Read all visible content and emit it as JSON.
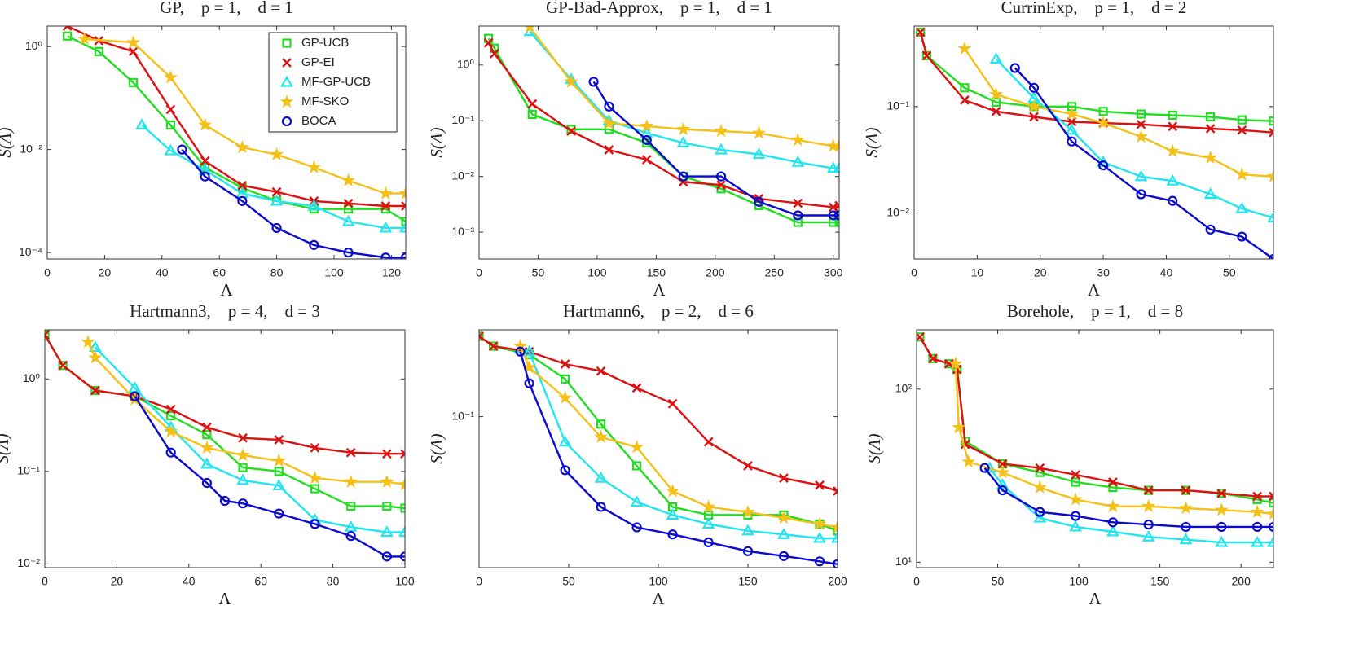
{
  "chart_data": [
    {
      "type": "line",
      "title": "GP,    p = 1,    d = 1",
      "xlabel": "Λ",
      "ylabel": "S(Λ)",
      "log_y": true,
      "legend": "upper right",
      "xlim": [
        0,
        125
      ],
      "ylim": [
        7.5e-05,
        2.5
      ],
      "xticks": [
        0,
        20,
        40,
        60,
        80,
        100,
        120
      ],
      "yticks": [
        {
          "value": 0.0001,
          "label": "10⁻⁴"
        },
        {
          "value": 0.01,
          "label": "10⁻²"
        },
        {
          "value": 1,
          "label": "10⁰"
        }
      ],
      "series": [
        {
          "name": "GP-UCB",
          "color": "#22dd22",
          "marker": "square",
          "x": [
            7,
            18,
            30,
            43,
            55,
            68,
            80,
            93,
            105,
            118,
            125
          ],
          "values": [
            1.6,
            0.8,
            0.2,
            0.03,
            0.0045,
            0.0018,
            0.001,
            0.0007,
            0.0007,
            0.0007,
            0.0004
          ]
        },
        {
          "name": "GP-EI",
          "color": "#dd1111",
          "marker": "x",
          "x": [
            7,
            18,
            30,
            43,
            55,
            68,
            80,
            93,
            105,
            118,
            125
          ],
          "values": [
            2.5,
            1.3,
            0.8,
            0.06,
            0.006,
            0.002,
            0.0015,
            0.001,
            0.0009,
            0.0008,
            0.0008
          ]
        },
        {
          "name": "MF-GP-UCB",
          "color": "#22e5ee",
          "marker": "triangle",
          "x": [
            33,
            43,
            55,
            68,
            80,
            93,
            105,
            118,
            125
          ],
          "values": [
            0.03,
            0.0095,
            0.004,
            0.0014,
            0.001,
            0.0008,
            0.0004,
            0.0003,
            0.0003
          ]
        },
        {
          "name": "MF-SKO",
          "color": "#f5c018",
          "marker": "star",
          "x": [
            13,
            30,
            43,
            55,
            68,
            80,
            93,
            105,
            118,
            125
          ],
          "values": [
            1.4,
            1.2,
            0.25,
            0.03,
            0.011,
            0.008,
            0.0045,
            0.0025,
            0.0014,
            0.0014
          ]
        },
        {
          "name": "BOCA",
          "color": "#0a0ad0",
          "marker": "circle",
          "x": [
            47,
            55,
            68,
            80,
            93,
            105,
            118,
            125
          ],
          "values": [
            0.01,
            0.003,
            0.001,
            0.0003,
            0.00014,
            0.0001,
            8e-05,
            8e-05
          ]
        }
      ]
    },
    {
      "type": "line",
      "title": "GP-Bad-Approx,    p = 1,    d = 1",
      "xlabel": "Λ",
      "ylabel": "S(Λ)",
      "log_y": true,
      "xlim": [
        0,
        305
      ],
      "ylim": [
        0.00033,
        5
      ],
      "xticks": [
        0,
        50,
        100,
        150,
        200,
        250,
        300
      ],
      "yticks": [
        {
          "value": 0.001,
          "label": "10⁻³"
        },
        {
          "value": 0.01,
          "label": "10⁻²"
        },
        {
          "value": 0.1,
          "label": "10⁻¹"
        },
        {
          "value": 1,
          "label": "10⁰"
        }
      ],
      "series": [
        {
          "color": "#22dd22",
          "marker": "square",
          "x": [
            8,
            13,
            45,
            78,
            110,
            142,
            173,
            205,
            237,
            270,
            300,
            305
          ],
          "values": [
            3.0,
            2.0,
            0.13,
            0.07,
            0.07,
            0.04,
            0.01,
            0.006,
            0.003,
            0.0015,
            0.0015,
            0.0015
          ]
        },
        {
          "color": "#dd1111",
          "marker": "x",
          "x": [
            8,
            13,
            45,
            78,
            110,
            142,
            173,
            205,
            237,
            270,
            300,
            305
          ],
          "values": [
            2.5,
            1.6,
            0.2,
            0.065,
            0.03,
            0.02,
            0.008,
            0.007,
            0.004,
            0.0033,
            0.0028,
            0.003
          ]
        },
        {
          "color": "#22e5ee",
          "marker": "triangle",
          "x": [
            43,
            78,
            110,
            142,
            173,
            205,
            237,
            270,
            300,
            305
          ],
          "values": [
            4.0,
            0.55,
            0.1,
            0.06,
            0.04,
            0.03,
            0.025,
            0.018,
            0.014,
            0.014
          ]
        },
        {
          "color": "#f5c018",
          "marker": "star",
          "x": [
            43,
            78,
            110,
            142,
            173,
            205,
            237,
            270,
            300,
            305
          ],
          "values": [
            4.8,
            0.5,
            0.09,
            0.08,
            0.07,
            0.065,
            0.06,
            0.045,
            0.035,
            0.035
          ]
        },
        {
          "color": "#0a0ad0",
          "marker": "circle",
          "x": [
            97,
            110,
            142,
            173,
            205,
            237,
            270,
            300,
            305
          ],
          "values": [
            0.5,
            0.18,
            0.045,
            0.01,
            0.01,
            0.0035,
            0.002,
            0.002,
            0.002
          ]
        }
      ]
    },
    {
      "type": "line",
      "title": "CurrinExp,    p = 1,    d = 2",
      "xlabel": "Λ",
      "ylabel": "S(Λ)",
      "log_y": true,
      "xlim": [
        0,
        57
      ],
      "ylim": [
        0.0037,
        0.57
      ],
      "xticks": [
        0,
        10,
        20,
        30,
        40,
        50
      ],
      "yticks": [
        {
          "value": 0.01,
          "label": "10⁻²"
        },
        {
          "value": 0.1,
          "label": "10⁻¹"
        }
      ],
      "series": [
        {
          "color": "#22dd22",
          "marker": "square",
          "x": [
            1,
            2,
            8,
            13,
            19,
            25,
            30,
            36,
            41,
            47,
            52,
            57
          ],
          "values": [
            0.5,
            0.3,
            0.15,
            0.11,
            0.1,
            0.1,
            0.09,
            0.085,
            0.083,
            0.08,
            0.075,
            0.073
          ]
        },
        {
          "color": "#dd1111",
          "marker": "x",
          "x": [
            1,
            2,
            8,
            13,
            19,
            25,
            30,
            36,
            41,
            47,
            52,
            57
          ],
          "values": [
            0.5,
            0.3,
            0.115,
            0.09,
            0.08,
            0.072,
            0.07,
            0.068,
            0.065,
            0.062,
            0.06,
            0.057
          ]
        },
        {
          "color": "#22e5ee",
          "marker": "triangle",
          "x": [
            13,
            19,
            25,
            30,
            36,
            41,
            47,
            52,
            57
          ],
          "values": [
            0.28,
            0.12,
            0.06,
            0.03,
            0.022,
            0.02,
            0.015,
            0.011,
            0.009
          ]
        },
        {
          "color": "#f5c018",
          "marker": "star",
          "x": [
            8,
            13,
            19,
            25,
            30,
            36,
            41,
            47,
            52,
            57
          ],
          "values": [
            0.35,
            0.13,
            0.1,
            0.085,
            0.07,
            0.052,
            0.038,
            0.033,
            0.023,
            0.022
          ]
        },
        {
          "color": "#0a0ad0",
          "marker": "circle",
          "x": [
            16,
            19,
            25,
            30,
            36,
            41,
            47,
            52,
            57
          ],
          "values": [
            0.23,
            0.15,
            0.047,
            0.028,
            0.015,
            0.013,
            0.007,
            0.006,
            0.0037
          ]
        }
      ]
    },
    {
      "type": "line",
      "title": "Hartmann3,    p = 4,    d = 3",
      "xlabel": "Λ",
      "ylabel": "S(Λ)",
      "log_y": true,
      "xlim": [
        0,
        100
      ],
      "ylim": [
        0.0091,
        3.4
      ],
      "xticks": [
        0,
        20,
        40,
        60,
        80,
        100
      ],
      "yticks": [
        {
          "value": 0.01,
          "label": "10⁻²"
        },
        {
          "value": 0.1,
          "label": "10⁻¹"
        },
        {
          "value": 1,
          "label": "10⁰"
        }
      ],
      "series": [
        {
          "color": "#22dd22",
          "marker": "square",
          "x": [
            0,
            5,
            14,
            25,
            35,
            45,
            55,
            65,
            75,
            85,
            95,
            100
          ],
          "values": [
            3,
            1.4,
            0.75,
            0.65,
            0.4,
            0.25,
            0.11,
            0.1,
            0.065,
            0.042,
            0.042,
            0.04
          ]
        },
        {
          "color": "#dd1111",
          "marker": "x",
          "x": [
            0,
            5,
            14,
            25,
            35,
            45,
            55,
            65,
            75,
            85,
            95,
            100
          ],
          "values": [
            3,
            1.4,
            0.75,
            0.65,
            0.47,
            0.3,
            0.23,
            0.22,
            0.18,
            0.16,
            0.155,
            0.155
          ]
        },
        {
          "color": "#22e5ee",
          "marker": "triangle",
          "x": [
            14,
            25,
            35,
            45,
            55,
            65,
            75,
            85,
            95,
            100
          ],
          "values": [
            2.2,
            0.8,
            0.3,
            0.12,
            0.08,
            0.07,
            0.03,
            0.025,
            0.022,
            0.022
          ]
        },
        {
          "color": "#f5c018",
          "marker": "star",
          "x": [
            12,
            14,
            25,
            35,
            45,
            55,
            65,
            75,
            85,
            95,
            100
          ],
          "values": [
            2.5,
            1.7,
            0.6,
            0.27,
            0.18,
            0.15,
            0.13,
            0.085,
            0.077,
            0.077,
            0.072
          ]
        },
        {
          "color": "#0a0ad0",
          "marker": "circle",
          "x": [
            25,
            35,
            45,
            50,
            55,
            65,
            75,
            85,
            95,
            100
          ],
          "values": [
            0.65,
            0.16,
            0.075,
            0.048,
            0.045,
            0.035,
            0.027,
            0.02,
            0.012,
            0.012
          ]
        }
      ]
    },
    {
      "type": "line",
      "title": "Hartmann6,    p = 2,    d = 6",
      "xlabel": "Λ",
      "ylabel": "S(Λ)",
      "log_y": true,
      "xlim": [
        0,
        200
      ],
      "ylim": [
        0.0119,
        0.34
      ],
      "xticks": [
        0,
        50,
        100,
        150,
        200
      ],
      "yticks": [
        {
          "value": 0.1,
          "label": "10⁻¹"
        }
      ],
      "series": [
        {
          "color": "#22dd22",
          "marker": "square",
          "x": [
            0,
            8,
            28,
            48,
            68,
            88,
            108,
            128,
            150,
            170,
            190,
            200
          ],
          "values": [
            0.31,
            0.27,
            0.24,
            0.17,
            0.09,
            0.05,
            0.028,
            0.025,
            0.025,
            0.025,
            0.022,
            0.02
          ]
        },
        {
          "color": "#dd1111",
          "marker": "x",
          "x": [
            0,
            8,
            28,
            48,
            68,
            88,
            108,
            128,
            150,
            170,
            190,
            200
          ],
          "values": [
            0.31,
            0.27,
            0.25,
            0.21,
            0.19,
            0.15,
            0.12,
            0.07,
            0.05,
            0.042,
            0.038,
            0.035
          ]
        },
        {
          "color": "#22e5ee",
          "marker": "triangle",
          "x": [
            23,
            28,
            48,
            68,
            88,
            108,
            128,
            150,
            170,
            190,
            200
          ],
          "values": [
            0.26,
            0.25,
            0.07,
            0.042,
            0.03,
            0.025,
            0.022,
            0.02,
            0.019,
            0.018,
            0.018
          ]
        },
        {
          "color": "#f5c018",
          "marker": "star",
          "x": [
            23,
            28,
            48,
            68,
            88,
            108,
            128,
            150,
            170,
            190,
            200
          ],
          "values": [
            0.27,
            0.2,
            0.13,
            0.075,
            0.065,
            0.035,
            0.028,
            0.026,
            0.024,
            0.022,
            0.021
          ]
        },
        {
          "color": "#0a0ad0",
          "marker": "circle",
          "x": [
            23,
            28,
            48,
            68,
            88,
            108,
            128,
            150,
            170,
            190,
            200
          ],
          "values": [
            0.25,
            0.16,
            0.047,
            0.028,
            0.021,
            0.019,
            0.017,
            0.015,
            0.014,
            0.013,
            0.0125
          ]
        }
      ]
    },
    {
      "type": "line",
      "title": "Borehole,    p = 1,    d = 8",
      "xlabel": "Λ",
      "ylabel": "S(Λ)",
      "log_y": true,
      "xlim": [
        0,
        220
      ],
      "ylim": [
        9.3,
        220
      ],
      "xticks": [
        0,
        50,
        100,
        150,
        200
      ],
      "yticks": [
        {
          "value": 10,
          "label": "10¹"
        },
        {
          "value": 100,
          "label": "10²"
        }
      ],
      "series": [
        {
          "color": "#22dd22",
          "marker": "square",
          "x": [
            2,
            10,
            20,
            25,
            30,
            53,
            76,
            98,
            121,
            143,
            166,
            188,
            210,
            220
          ],
          "values": [
            200,
            150,
            140,
            130,
            50,
            37,
            33,
            29,
            27,
            26,
            26,
            25,
            23,
            22
          ]
        },
        {
          "color": "#dd1111",
          "marker": "x",
          "x": [
            2,
            10,
            20,
            25,
            30,
            53,
            76,
            98,
            121,
            143,
            166,
            188,
            210,
            220
          ],
          "values": [
            200,
            150,
            140,
            130,
            48,
            37,
            35,
            32,
            29,
            26,
            26,
            25,
            24,
            24
          ]
        },
        {
          "color": "#22e5ee",
          "marker": "triangle",
          "x": [
            45,
            53,
            76,
            98,
            121,
            143,
            166,
            188,
            210,
            220
          ],
          "values": [
            35,
            28,
            18,
            16,
            15,
            14,
            13.5,
            13,
            13,
            13
          ]
        },
        {
          "color": "#f5c018",
          "marker": "star",
          "x": [
            24,
            26,
            32,
            53,
            76,
            98,
            121,
            143,
            166,
            188,
            210,
            220
          ],
          "values": [
            140,
            60,
            38,
            33,
            27,
            23,
            21,
            21,
            20.5,
            20,
            19.5,
            19
          ]
        },
        {
          "color": "#0a0ad0",
          "marker": "circle",
          "x": [
            42,
            53,
            76,
            98,
            121,
            143,
            166,
            188,
            210,
            220
          ],
          "values": [
            35,
            26,
            19.5,
            18.5,
            17,
            16.5,
            16,
            16,
            16,
            16
          ]
        }
      ]
    }
  ]
}
